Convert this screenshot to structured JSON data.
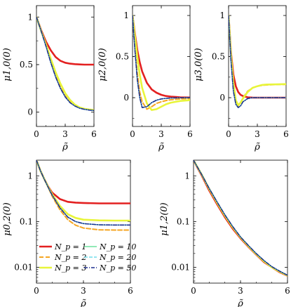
{
  "series_styles": [
    {
      "name": "N_p = 1",
      "color": "#e32020",
      "dash": "",
      "width": 2.6
    },
    {
      "name": "N_p = 2",
      "color": "#f5a623",
      "dash": "6 3",
      "width": 2.0
    },
    {
      "name": "N_p = 3",
      "color": "#e8f53a",
      "dash": "",
      "width": 2.6
    },
    {
      "name": "N_p = 10",
      "color": "#4fdc8a",
      "dash": "",
      "width": 1.3
    },
    {
      "name": "N_p = 20",
      "color": "#55d6e8",
      "dash": "5 2",
      "width": 1.3
    },
    {
      "name": "N_p = 50",
      "color": "#1c2f8f",
      "dash": "5 2 1 2",
      "width": 1.6
    }
  ],
  "chart_data": [
    {
      "id": "mu10",
      "type": "line",
      "ylabel": "μ1,0(0)",
      "xlabel": "ρ̃",
      "xlim": [
        0,
        6
      ],
      "ylim": [
        -0.15,
        1.12
      ],
      "xticks": [
        "0",
        "3",
        "6"
      ],
      "yticks": [
        "0",
        "0.5",
        "1"
      ],
      "x": [
        0,
        0.5,
        1,
        1.5,
        2,
        2.5,
        3,
        3.5,
        4,
        4.5,
        5,
        5.5,
        6
      ],
      "series": [
        {
          "values": [
            1,
            0.86,
            0.74,
            0.65,
            0.58,
            0.54,
            0.52,
            0.51,
            0.505,
            0.502,
            0.5,
            0.5,
            0.5
          ]
        },
        {
          "values": [
            1,
            0.85,
            0.7,
            0.53,
            0.38,
            0.26,
            0.17,
            0.11,
            0.07,
            0.05,
            0.035,
            0.03,
            0.025
          ]
        },
        {
          "values": [
            1,
            0.85,
            0.71,
            0.56,
            0.42,
            0.3,
            0.2,
            0.13,
            0.08,
            0.05,
            0.035,
            0.028,
            0.022
          ]
        },
        {
          "values": [
            1,
            0.85,
            0.69,
            0.52,
            0.37,
            0.25,
            0.16,
            0.1,
            0.065,
            0.042,
            0.03,
            0.022,
            0.018
          ]
        },
        {
          "values": [
            1,
            0.85,
            0.69,
            0.52,
            0.37,
            0.25,
            0.16,
            0.1,
            0.065,
            0.042,
            0.03,
            0.022,
            0.018
          ]
        },
        {
          "values": [
            1,
            0.85,
            0.69,
            0.52,
            0.37,
            0.25,
            0.16,
            0.1,
            0.065,
            0.042,
            0.03,
            0.022,
            0.018
          ]
        }
      ]
    },
    {
      "id": "mu20",
      "type": "line",
      "ylabel": "μ2,0(0)",
      "xlabel": "ρ̃",
      "xlim": [
        0,
        6
      ],
      "ylim": [
        -0.35,
        1.12
      ],
      "xticks": [
        "0",
        "3",
        "6"
      ],
      "yticks": [
        "0",
        "0.5",
        "1"
      ],
      "x": [
        0,
        0.25,
        0.5,
        0.75,
        1,
        1.5,
        2,
        2.5,
        3,
        3.5,
        4,
        5,
        6
      ],
      "series": [
        {
          "values": [
            1,
            0.78,
            0.58,
            0.43,
            0.32,
            0.18,
            0.1,
            0.06,
            0.035,
            0.02,
            0.012,
            0.005,
            0.002
          ]
        },
        {
          "values": [
            1,
            0.6,
            0.3,
            0.07,
            -0.05,
            -0.14,
            -0.11,
            -0.07,
            -0.05,
            -0.035,
            -0.025,
            -0.015,
            -0.01
          ]
        },
        {
          "values": [
            1,
            0.75,
            0.5,
            0.28,
            0.12,
            -0.07,
            -0.15,
            -0.14,
            -0.11,
            -0.08,
            -0.06,
            -0.04,
            -0.03
          ]
        },
        {
          "values": [
            1,
            0.58,
            0.22,
            0.0,
            -0.12,
            -0.11,
            -0.06,
            -0.03,
            -0.015,
            -0.008,
            -0.004,
            -0.001,
            0
          ]
        },
        {
          "values": [
            1,
            0.58,
            0.22,
            0.0,
            -0.12,
            -0.11,
            -0.06,
            -0.03,
            -0.015,
            -0.008,
            -0.004,
            -0.001,
            0
          ]
        },
        {
          "values": [
            1,
            0.58,
            0.22,
            0.0,
            -0.12,
            -0.11,
            -0.06,
            -0.03,
            -0.015,
            -0.008,
            -0.004,
            -0.001,
            0
          ]
        }
      ]
    },
    {
      "id": "mu30",
      "type": "line",
      "ylabel": "μ3,0(0)",
      "xlabel": "ρ̃",
      "xlim": [
        0,
        6
      ],
      "ylim": [
        -0.35,
        1.12
      ],
      "xticks": [
        "0",
        "3",
        "6"
      ],
      "yticks": [
        "0",
        "0.5",
        "1"
      ],
      "x": [
        0,
        0.25,
        0.5,
        0.75,
        1,
        1.25,
        1.5,
        2,
        2.5,
        3,
        3.5,
        4,
        5,
        6
      ],
      "series": [
        {
          "values": [
            1,
            0.55,
            0.28,
            0.14,
            0.07,
            0.035,
            0.02,
            0.005,
            0.001,
            0,
            0,
            0,
            0,
            0
          ]
        },
        {
          "values": [
            1,
            0.5,
            0.15,
            -0.05,
            -0.1,
            -0.06,
            0.0,
            0.08,
            0.12,
            0.14,
            0.15,
            0.155,
            0.16,
            0.16
          ]
        },
        {
          "values": [
            1,
            0.52,
            0.18,
            -0.03,
            -0.09,
            -0.06,
            -0.01,
            0.07,
            0.12,
            0.14,
            0.155,
            0.16,
            0.162,
            0.165
          ]
        },
        {
          "values": [
            1,
            0.45,
            0.08,
            -0.08,
            -0.12,
            -0.1,
            -0.05,
            -0.01,
            0.0,
            0.0,
            0.0,
            0.0,
            0.0,
            0.0
          ]
        },
        {
          "values": [
            1,
            0.45,
            0.08,
            -0.08,
            -0.12,
            -0.1,
            -0.05,
            -0.01,
            0.0,
            0.0,
            0.0,
            0.0,
            0.0,
            0.0
          ]
        },
        {
          "values": [
            1,
            0.45,
            0.08,
            -0.08,
            -0.12,
            -0.1,
            -0.05,
            -0.01,
            0.0,
            0.0,
            0.0,
            0.0,
            0.0,
            0.0
          ]
        }
      ]
    },
    {
      "id": "mu02",
      "type": "line",
      "yscale": "log",
      "ylabel": "μ0,2(0)",
      "xlabel": "ρ̃",
      "xlim": [
        0,
        6
      ],
      "ylim": [
        0.0045,
        2.2
      ],
      "xticks": [
        "0",
        "3",
        "6"
      ],
      "yticks": [
        "0.01",
        "0.1",
        "1"
      ],
      "x": [
        0,
        0.25,
        0.5,
        0.75,
        1,
        1.5,
        2,
        2.5,
        3,
        4,
        5,
        6
      ],
      "series": [
        {
          "values": [
            2.2,
            1.3,
            0.85,
            0.58,
            0.43,
            0.31,
            0.27,
            0.26,
            0.255,
            0.25,
            0.25,
            0.25
          ]
        },
        {
          "values": [
            2.2,
            1.3,
            0.84,
            0.55,
            0.36,
            0.18,
            0.11,
            0.083,
            0.072,
            0.066,
            0.065,
            0.065
          ]
        },
        {
          "values": [
            2.2,
            1.3,
            0.85,
            0.57,
            0.4,
            0.22,
            0.145,
            0.12,
            0.11,
            0.106,
            0.105,
            0.105
          ]
        },
        {
          "values": [
            2.2,
            1.3,
            0.84,
            0.56,
            0.38,
            0.2,
            0.125,
            0.1,
            0.09,
            0.085,
            0.084,
            0.084
          ]
        },
        {
          "values": [
            2.2,
            1.3,
            0.84,
            0.56,
            0.38,
            0.2,
            0.125,
            0.1,
            0.09,
            0.085,
            0.084,
            0.084
          ]
        },
        {
          "values": [
            2.2,
            1.3,
            0.84,
            0.56,
            0.38,
            0.2,
            0.125,
            0.1,
            0.09,
            0.085,
            0.084,
            0.084
          ]
        }
      ],
      "legend": [
        "N_p = 1",
        "N_p = 2",
        "N_p = 3",
        "N_p = 10",
        "N_p = 20",
        "N_p = 50"
      ],
      "legend_position": "lower-left"
    },
    {
      "id": "mu12",
      "type": "line",
      "yscale": "log",
      "ylabel": "μ1,2(0)",
      "xlabel": "ρ̃",
      "xlim": [
        0,
        6
      ],
      "ylim": [
        0.0045,
        2.2
      ],
      "xticks": [
        "0",
        "3",
        "6"
      ],
      "yticks": [
        "0.01",
        "0.1",
        "1"
      ],
      "x": [
        0,
        0.25,
        0.5,
        1,
        1.5,
        2,
        2.5,
        3,
        3.5,
        4,
        4.5,
        5,
        5.5,
        6
      ],
      "series": [
        {
          "values": [
            2.2,
            1.5,
            1.05,
            0.48,
            0.24,
            0.125,
            0.07,
            0.043,
            0.028,
            0.019,
            0.013,
            0.01,
            0.0078,
            0.0065
          ]
        },
        {
          "values": [
            2.2,
            1.55,
            1.1,
            0.52,
            0.26,
            0.135,
            0.075,
            0.045,
            0.029,
            0.0195,
            0.0135,
            0.01,
            0.008,
            0.0066
          ]
        },
        {
          "values": [
            2.2,
            1.55,
            1.1,
            0.52,
            0.26,
            0.135,
            0.075,
            0.045,
            0.029,
            0.0195,
            0.0135,
            0.01,
            0.008,
            0.0066
          ]
        },
        {
          "values": [
            2.2,
            1.55,
            1.1,
            0.53,
            0.27,
            0.14,
            0.078,
            0.046,
            0.03,
            0.02,
            0.014,
            0.0103,
            0.0082,
            0.0067
          ]
        },
        {
          "values": [
            2.2,
            1.55,
            1.1,
            0.53,
            0.27,
            0.14,
            0.078,
            0.046,
            0.03,
            0.02,
            0.014,
            0.0103,
            0.0082,
            0.0067
          ]
        },
        {
          "values": [
            2.2,
            1.55,
            1.1,
            0.53,
            0.27,
            0.14,
            0.078,
            0.046,
            0.03,
            0.02,
            0.014,
            0.0103,
            0.0082,
            0.0067
          ]
        }
      ]
    }
  ]
}
